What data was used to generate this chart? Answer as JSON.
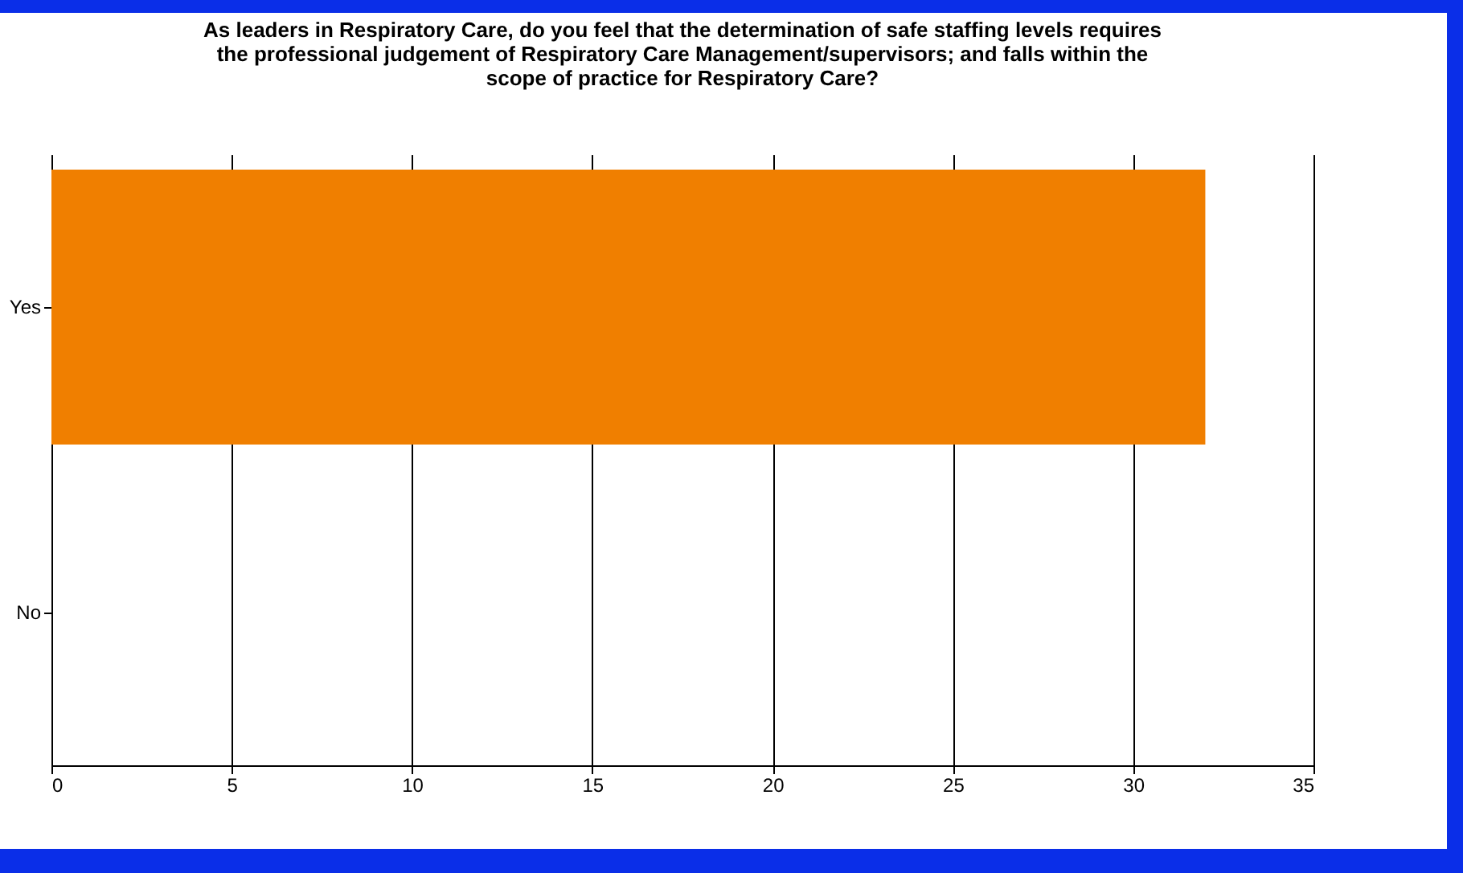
{
  "chart_data": {
    "type": "bar",
    "orientation": "horizontal",
    "title": [
      "As leaders in Respiratory Care, do you feel that the determination of safe staffing levels requires",
      "the professional judgement of Respiratory Care Management/supervisors; and falls within the",
      "scope of practice for Respiratory Care?"
    ],
    "categories": [
      "Yes",
      "No"
    ],
    "values": [
      32,
      0
    ],
    "color": "#f07f00",
    "xlim": [
      0,
      35
    ],
    "xticks": [
      0,
      5,
      10,
      15,
      20,
      25,
      30,
      35
    ],
    "grid": "x",
    "legend": false
  }
}
